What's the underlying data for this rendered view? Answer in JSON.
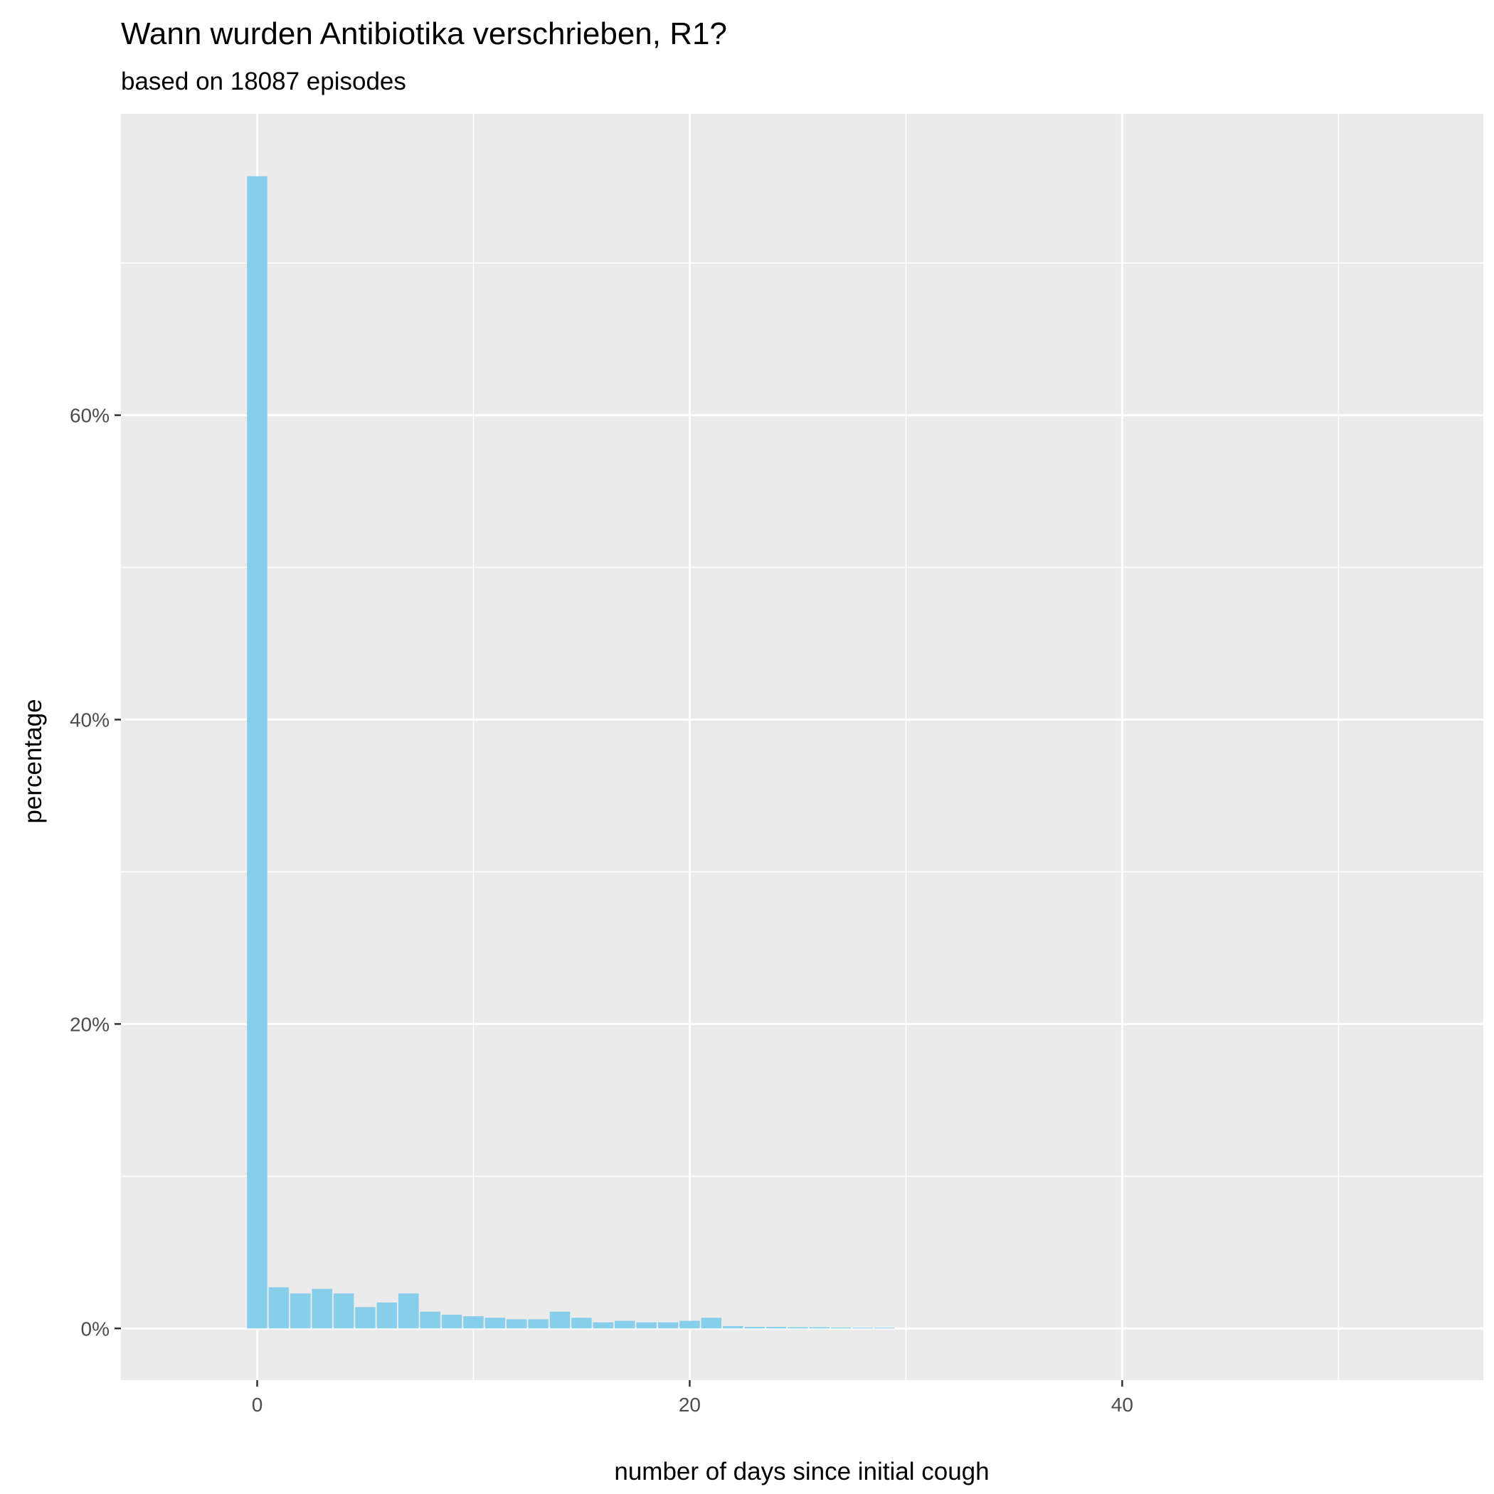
{
  "chart_data": {
    "type": "bar",
    "title": "Wann wurden Antibiotika verschrieben, R1?",
    "subtitle": "based on 18087 episodes",
    "xlabel": "number of days since initial cough",
    "ylabel": "percentage",
    "xlim": [
      -6.3,
      56.7
    ],
    "ylim": [
      -3.4,
      79.8
    ],
    "x_ticks": [
      0,
      20,
      40
    ],
    "x_tick_labels": [
      "0",
      "20",
      "40"
    ],
    "y_ticks": [
      0,
      20,
      40,
      60
    ],
    "y_tick_labels": [
      "0%",
      "20%",
      "40%",
      "60%"
    ],
    "grid": true,
    "x": [
      0,
      1,
      2,
      3,
      4,
      5,
      6,
      7,
      8,
      9,
      10,
      11,
      12,
      13,
      14,
      15,
      16,
      17,
      18,
      19,
      20,
      21,
      22,
      23,
      24,
      25,
      26,
      27,
      28,
      29
    ],
    "values": [
      75.7,
      2.7,
      2.3,
      2.6,
      2.3,
      1.4,
      1.7,
      2.3,
      1.1,
      0.9,
      0.8,
      0.7,
      0.6,
      0.6,
      1.1,
      0.7,
      0.4,
      0.5,
      0.4,
      0.4,
      0.5,
      0.7,
      0.15,
      0.1,
      0.1,
      0.08,
      0.08,
      0.06,
      0.05,
      0.05
    ],
    "colors": {
      "bar": "#87CEEB",
      "panel": "#EBEBEB",
      "grid": "#FFFFFF",
      "tick": "#333333"
    }
  }
}
